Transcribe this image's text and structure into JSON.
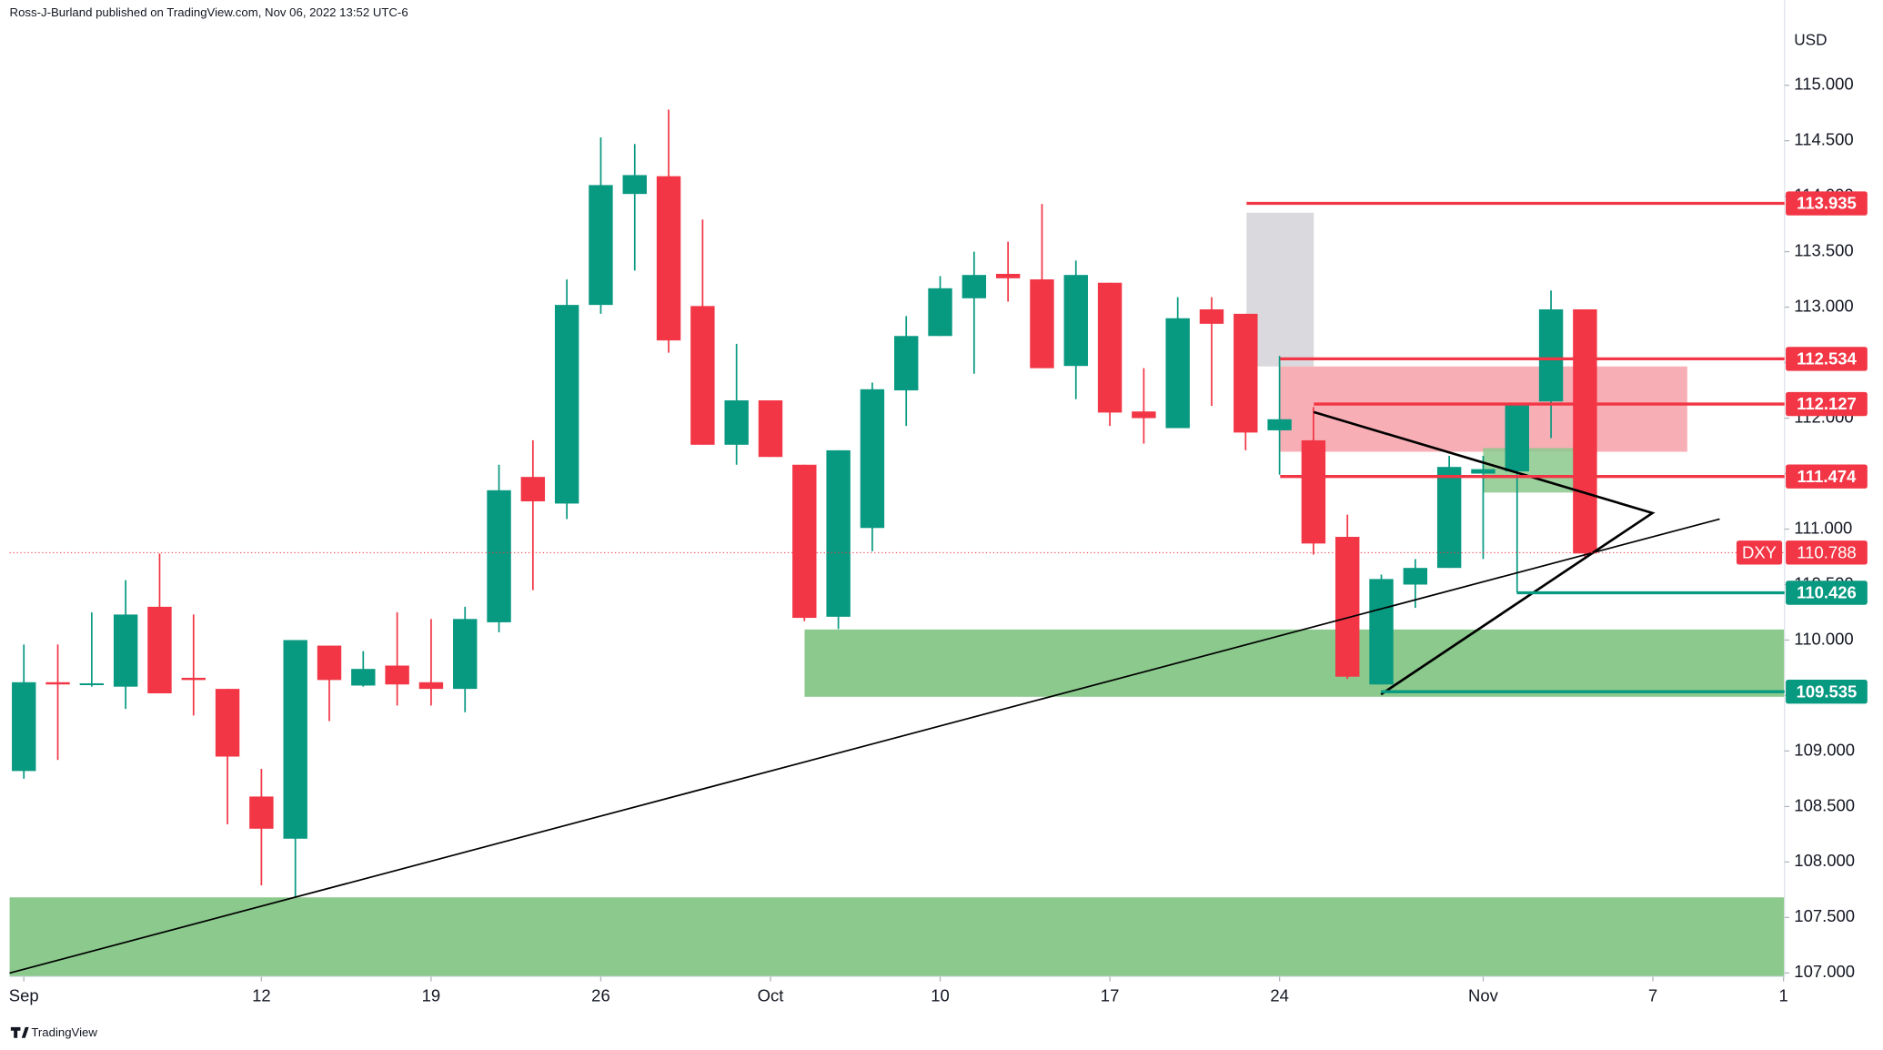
{
  "header": {
    "text": "Ross-J-Burland published on TradingView.com, Nov 06, 2022 13:52 UTC-6"
  },
  "footer": {
    "logo": "TradingView"
  },
  "chart_data": {
    "type": "candlestick",
    "currency": "USD",
    "up_color": "#089981",
    "down_color": "#f23645",
    "categories": [
      null,
      null,
      null,
      null,
      null,
      null,
      null,
      null,
      null,
      null,
      null,
      null,
      null,
      null,
      null,
      null,
      null,
      null,
      null,
      null,
      null,
      null,
      null,
      null,
      null,
      null,
      null,
      null,
      null,
      null,
      null,
      null,
      null,
      null,
      null,
      null,
      null,
      null,
      null,
      null,
      null,
      null,
      null,
      null,
      null,
      null,
      null
    ],
    "open": [
      108.82,
      109.62,
      109.6,
      109.58,
      110.3,
      109.66,
      109.56,
      108.59,
      108.21,
      109.95,
      109.59,
      109.77,
      109.62,
      109.56,
      110.16,
      111.47,
      111.23,
      113.02,
      114.02,
      114.18,
      113.01,
      111.76,
      112.16,
      111.58,
      110.21,
      111.01,
      112.25,
      112.74,
      113.08,
      113.3,
      113.25,
      112.47,
      113.22,
      112.06,
      111.91,
      112.98,
      112.94,
      111.89,
      111.8,
      110.93,
      109.6,
      110.5,
      110.65,
      111.5,
      111.52,
      112.15,
      112.98
    ],
    "high": [
      109.96,
      109.96,
      110.25,
      110.54,
      110.78,
      110.23,
      109.56,
      108.84,
      110.0,
      109.95,
      109.9,
      110.25,
      110.19,
      110.3,
      111.58,
      111.8,
      113.25,
      114.53,
      114.47,
      114.78,
      113.79,
      112.67,
      112.16,
      111.58,
      111.71,
      112.32,
      112.92,
      113.28,
      113.5,
      113.59,
      113.93,
      113.42,
      113.22,
      112.45,
      113.09,
      113.09,
      112.94,
      112.56,
      112.1,
      111.13,
      110.59,
      110.73,
      111.66,
      111.66,
      112.12,
      113.15,
      112.98
    ],
    "low": [
      108.75,
      108.92,
      109.58,
      109.38,
      109.52,
      109.32,
      108.34,
      107.79,
      107.68,
      109.27,
      109.58,
      109.41,
      109.41,
      109.35,
      110.07,
      110.45,
      111.09,
      112.94,
      113.33,
      112.59,
      111.76,
      111.58,
      111.65,
      110.17,
      110.1,
      110.8,
      111.93,
      112.74,
      112.4,
      113.05,
      112.45,
      112.17,
      111.93,
      111.77,
      111.91,
      112.11,
      111.71,
      111.49,
      110.77,
      109.65,
      109.6,
      110.29,
      110.65,
      110.73,
      110.43,
      111.82,
      110.73
    ],
    "close": [
      109.62,
      109.6,
      109.61,
      110.23,
      109.52,
      109.64,
      108.95,
      108.3,
      110.0,
      109.64,
      109.74,
      109.6,
      109.56,
      110.19,
      111.35,
      111.25,
      113.02,
      114.1,
      114.19,
      112.7,
      111.76,
      112.16,
      111.65,
      110.2,
      111.71,
      112.26,
      112.74,
      113.17,
      113.29,
      113.26,
      112.45,
      113.29,
      112.05,
      112.0,
      112.9,
      112.85,
      111.87,
      111.99,
      110.87,
      109.67,
      110.55,
      110.65,
      111.56,
      111.54,
      112.12,
      112.98,
      110.78
    ],
    "xlim": [
      -0.42,
      51.88
    ],
    "xticks": [
      {
        "value": 0,
        "label": "Sep"
      },
      {
        "value": 7,
        "label": "12"
      },
      {
        "value": 12,
        "label": "19"
      },
      {
        "value": 17,
        "label": "26"
      },
      {
        "value": 22,
        "label": "Oct"
      },
      {
        "value": 27,
        "label": "10"
      },
      {
        "value": 32,
        "label": "17"
      },
      {
        "value": 37,
        "label": "24"
      },
      {
        "value": 43,
        "label": "Nov"
      },
      {
        "value": 48,
        "label": "7"
      },
      {
        "value": 51.85,
        "label": "1"
      }
    ],
    "ylim": [
      106.967,
      115.767
    ],
    "yticks": [
      {
        "value": 107,
        "label": "107.000"
      },
      {
        "value": 107.5,
        "label": "107.500"
      },
      {
        "value": 108,
        "label": "108.000"
      },
      {
        "value": 108.5,
        "label": "108.500"
      },
      {
        "value": 109,
        "label": "109.000"
      },
      {
        "value": 109.5,
        "label": "109.500"
      },
      {
        "value": 110,
        "label": "110.000"
      },
      {
        "value": 110.5,
        "label": "110.500"
      },
      {
        "value": 111,
        "label": "111.000"
      },
      {
        "value": 111.5,
        "label": "111.500"
      },
      {
        "value": 112,
        "label": "112.000"
      },
      {
        "value": 112.5,
        "label": "112.500"
      },
      {
        "value": 113,
        "label": "113.000"
      },
      {
        "value": 113.5,
        "label": "113.500"
      },
      {
        "value": 114,
        "label": "114.000"
      },
      {
        "value": 114.5,
        "label": "114.500"
      },
      {
        "value": 115,
        "label": "115.000"
      }
    ],
    "levels": [
      {
        "value": 113.935,
        "color": "#f23645"
      },
      {
        "value": 112.534,
        "color": "#f23645"
      },
      {
        "value": 112.127,
        "color": "#f23645"
      },
      {
        "value": 111.474,
        "color": "#f23645"
      },
      {
        "value": 110.426,
        "color": "#089981"
      },
      {
        "value": 109.535,
        "color": "#089981"
      }
    ],
    "last_price": {
      "symbol": "DXY",
      "value": 110.788,
      "color": "#f23645"
    }
  }
}
